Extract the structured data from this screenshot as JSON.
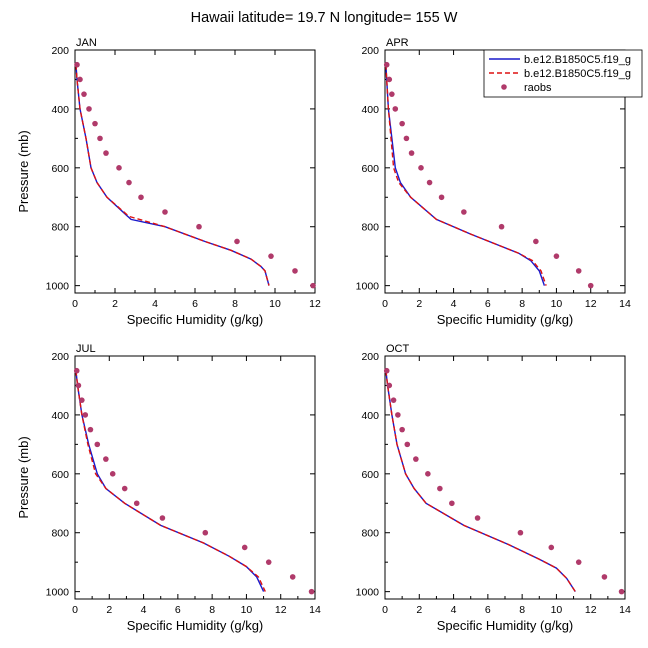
{
  "title": "Hawaii  latitude= 19.7 N longitude= 155 W",
  "colors": {
    "model1": "#1a1acc",
    "model2": "#dd1111",
    "raobs": "#b03a6a"
  },
  "legend": {
    "placement": "top-right",
    "entries": [
      {
        "label": "b.e12.B1850C5.f19_g",
        "style": "solid-line",
        "color": "#1a1acc"
      },
      {
        "label": "b.e12.B1850C5.f19_g",
        "style": "dashed-line",
        "color": "#dd1111"
      },
      {
        "label": "raobs",
        "style": "dot",
        "color": "#b03a6a"
      }
    ]
  },
  "chart_data": [
    {
      "type": "line",
      "panel": "JAN",
      "xlabel": "Specific Humidity (g/kg)",
      "ylabel": "Pressure (mb)",
      "xlim": [
        0,
        12
      ],
      "ylim": [
        200,
        1025
      ],
      "y_reversed": true,
      "xticks": [
        0,
        2,
        4,
        6,
        8,
        10,
        12
      ],
      "yticks": [
        200,
        400,
        600,
        800,
        1000
      ],
      "series": [
        {
          "key": "model1",
          "style": "solid",
          "points": [
            [
              0.05,
              250
            ],
            [
              0.1,
              300
            ],
            [
              0.25,
              400
            ],
            [
              0.55,
              500
            ],
            [
              0.8,
              600
            ],
            [
              1.1,
              650
            ],
            [
              1.6,
              700
            ],
            [
              2.8,
              775
            ],
            [
              4.5,
              800
            ],
            [
              6.5,
              850
            ],
            [
              7.8,
              880
            ],
            [
              8.8,
              910
            ],
            [
              9.3,
              935
            ],
            [
              9.5,
              950
            ],
            [
              9.6,
              975
            ],
            [
              9.7,
              1000
            ]
          ]
        },
        {
          "key": "model2",
          "style": "dashed",
          "points": [
            [
              0.05,
              250
            ],
            [
              0.1,
              300
            ],
            [
              0.25,
              400
            ],
            [
              0.55,
              500
            ],
            [
              0.8,
              600
            ],
            [
              1.1,
              650
            ],
            [
              1.6,
              700
            ],
            [
              2.7,
              765
            ],
            [
              4.5,
              800
            ],
            [
              6.5,
              850
            ],
            [
              7.8,
              880
            ],
            [
              8.8,
              910
            ],
            [
              9.3,
              935
            ],
            [
              9.5,
              950
            ],
            [
              9.6,
              975
            ],
            [
              9.7,
              1000
            ]
          ]
        },
        {
          "key": "raobs",
          "style": "dots",
          "points": [
            [
              0.1,
              250
            ],
            [
              0.25,
              300
            ],
            [
              0.45,
              350
            ],
            [
              0.7,
              400
            ],
            [
              1.0,
              450
            ],
            [
              1.25,
              500
            ],
            [
              1.55,
              550
            ],
            [
              2.2,
              600
            ],
            [
              2.7,
              650
            ],
            [
              3.3,
              700
            ],
            [
              4.5,
              750
            ],
            [
              6.2,
              800
            ],
            [
              8.1,
              850
            ],
            [
              9.8,
              900
            ],
            [
              11.0,
              950
            ],
            [
              11.9,
              1000
            ]
          ]
        }
      ]
    },
    {
      "type": "line",
      "panel": "APR",
      "xlabel": "Specific Humidity (g/kg)",
      "ylabel": "",
      "xlim": [
        0,
        14
      ],
      "ylim": [
        200,
        1025
      ],
      "y_reversed": true,
      "xticks": [
        0,
        2,
        4,
        6,
        8,
        10,
        12,
        14
      ],
      "yticks": [
        200,
        400,
        600,
        800,
        1000
      ],
      "series": [
        {
          "key": "model1",
          "style": "solid",
          "points": [
            [
              0.05,
              250
            ],
            [
              0.1,
              300
            ],
            [
              0.2,
              400
            ],
            [
              0.4,
              500
            ],
            [
              0.6,
              600
            ],
            [
              0.9,
              650
            ],
            [
              1.5,
              700
            ],
            [
              3.0,
              775
            ],
            [
              5.0,
              825
            ],
            [
              6.5,
              860
            ],
            [
              7.8,
              890
            ],
            [
              8.5,
              915
            ],
            [
              9.0,
              950
            ],
            [
              9.3,
              1000
            ]
          ]
        },
        {
          "key": "model2",
          "style": "dashed",
          "points": [
            [
              0.05,
              250
            ],
            [
              0.1,
              300
            ],
            [
              0.2,
              400
            ],
            [
              0.35,
              500
            ],
            [
              0.5,
              600
            ],
            [
              0.8,
              650
            ],
            [
              1.5,
              700
            ],
            [
              3.0,
              775
            ],
            [
              5.0,
              825
            ],
            [
              6.5,
              860
            ],
            [
              7.8,
              890
            ],
            [
              8.6,
              915
            ],
            [
              9.1,
              950
            ],
            [
              9.4,
              1000
            ]
          ]
        },
        {
          "key": "raobs",
          "style": "dots",
          "points": [
            [
              0.1,
              250
            ],
            [
              0.25,
              300
            ],
            [
              0.4,
              350
            ],
            [
              0.6,
              400
            ],
            [
              1.0,
              450
            ],
            [
              1.25,
              500
            ],
            [
              1.55,
              550
            ],
            [
              2.1,
              600
            ],
            [
              2.6,
              650
            ],
            [
              3.3,
              700
            ],
            [
              4.6,
              750
            ],
            [
              6.8,
              800
            ],
            [
              8.8,
              850
            ],
            [
              10.0,
              900
            ],
            [
              11.3,
              950
            ],
            [
              12.0,
              1000
            ]
          ]
        }
      ]
    },
    {
      "type": "line",
      "panel": "JUL",
      "xlabel": "Specific Humidity (g/kg)",
      "ylabel": "Pressure (mb)",
      "xlim": [
        0,
        14
      ],
      "ylim": [
        200,
        1025
      ],
      "y_reversed": true,
      "xticks": [
        0,
        2,
        4,
        6,
        8,
        10,
        12,
        14
      ],
      "yticks": [
        200,
        400,
        600,
        800,
        1000
      ],
      "series": [
        {
          "key": "model1",
          "style": "solid",
          "points": [
            [
              0.05,
              250
            ],
            [
              0.15,
              300
            ],
            [
              0.4,
              400
            ],
            [
              0.8,
              500
            ],
            [
              1.3,
              600
            ],
            [
              1.8,
              650
            ],
            [
              2.9,
              700
            ],
            [
              5.0,
              775
            ],
            [
              7.5,
              835
            ],
            [
              9.0,
              880
            ],
            [
              10.0,
              915
            ],
            [
              10.6,
              950
            ],
            [
              11.0,
              1000
            ]
          ]
        },
        {
          "key": "model2",
          "style": "dashed",
          "points": [
            [
              0.05,
              250
            ],
            [
              0.15,
              300
            ],
            [
              0.4,
              400
            ],
            [
              0.75,
              500
            ],
            [
              1.2,
              600
            ],
            [
              1.8,
              650
            ],
            [
              2.9,
              700
            ],
            [
              5.0,
              775
            ],
            [
              7.5,
              835
            ],
            [
              9.0,
              880
            ],
            [
              10.0,
              915
            ],
            [
              10.7,
              950
            ],
            [
              11.1,
              1000
            ]
          ]
        },
        {
          "key": "raobs",
          "style": "dots",
          "points": [
            [
              0.1,
              250
            ],
            [
              0.2,
              300
            ],
            [
              0.4,
              350
            ],
            [
              0.6,
              400
            ],
            [
              0.9,
              450
            ],
            [
              1.3,
              500
            ],
            [
              1.8,
              550
            ],
            [
              2.2,
              600
            ],
            [
              2.9,
              650
            ],
            [
              3.6,
              700
            ],
            [
              5.1,
              750
            ],
            [
              7.6,
              800
            ],
            [
              9.9,
              850
            ],
            [
              11.3,
              900
            ],
            [
              12.7,
              950
            ],
            [
              13.8,
              1000
            ]
          ]
        }
      ]
    },
    {
      "type": "line",
      "panel": "OCT",
      "xlabel": "Specific Humidity (g/kg)",
      "ylabel": "",
      "xlim": [
        0,
        14
      ],
      "ylim": [
        200,
        1025
      ],
      "y_reversed": true,
      "xticks": [
        0,
        2,
        4,
        6,
        8,
        10,
        12,
        14
      ],
      "yticks": [
        200,
        400,
        600,
        800,
        1000
      ],
      "series": [
        {
          "key": "model1",
          "style": "solid",
          "points": [
            [
              0.05,
              250
            ],
            [
              0.15,
              300
            ],
            [
              0.4,
              400
            ],
            [
              0.7,
              500
            ],
            [
              1.2,
              600
            ],
            [
              1.7,
              650
            ],
            [
              2.4,
              700
            ],
            [
              4.6,
              775
            ],
            [
              7.2,
              840
            ],
            [
              9.0,
              890
            ],
            [
              10.0,
              920
            ],
            [
              10.6,
              955
            ],
            [
              11.1,
              1000
            ]
          ]
        },
        {
          "key": "model2",
          "style": "dashed",
          "points": [
            [
              0.05,
              250
            ],
            [
              0.15,
              300
            ],
            [
              0.4,
              400
            ],
            [
              0.7,
              500
            ],
            [
              1.2,
              600
            ],
            [
              1.7,
              650
            ],
            [
              2.4,
              700
            ],
            [
              4.6,
              775
            ],
            [
              7.2,
              840
            ],
            [
              9.0,
              890
            ],
            [
              10.0,
              920
            ],
            [
              10.6,
              955
            ],
            [
              11.1,
              1000
            ]
          ]
        },
        {
          "key": "raobs",
          "style": "dots",
          "points": [
            [
              0.1,
              250
            ],
            [
              0.25,
              300
            ],
            [
              0.5,
              350
            ],
            [
              0.75,
              400
            ],
            [
              1.0,
              450
            ],
            [
              1.3,
              500
            ],
            [
              1.8,
              550
            ],
            [
              2.5,
              600
            ],
            [
              3.2,
              650
            ],
            [
              3.9,
              700
            ],
            [
              5.4,
              750
            ],
            [
              7.9,
              800
            ],
            [
              9.7,
              850
            ],
            [
              11.3,
              900
            ],
            [
              12.8,
              950
            ],
            [
              13.8,
              1000
            ]
          ]
        }
      ]
    }
  ]
}
